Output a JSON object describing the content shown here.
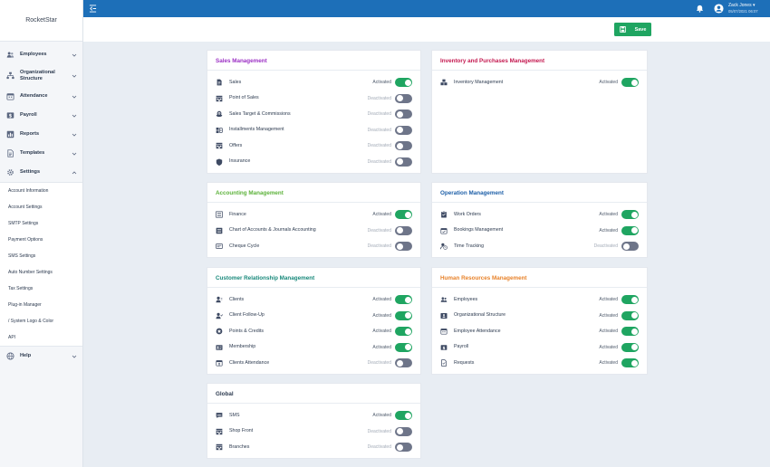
{
  "app": {
    "logo": "RocketStar"
  },
  "topbar": {
    "user_name": "Zack Jones ▾",
    "user_datetime": "05/07/2021 06:07"
  },
  "actions": {
    "save_label": "Save"
  },
  "sidebar": {
    "items": [
      {
        "label": "Employees",
        "icon": "users-icon"
      },
      {
        "label": "Organizational Structure",
        "icon": "org-chart-icon"
      },
      {
        "label": "Attendance",
        "icon": "calendar-icon"
      },
      {
        "label": "Payroll",
        "icon": "dollar-icon"
      },
      {
        "label": "Reports",
        "icon": "chart-icon"
      },
      {
        "label": "Templates",
        "icon": "document-icon"
      },
      {
        "label": "Settings",
        "icon": "gear-icon"
      }
    ],
    "settings_sub": [
      "Account Information",
      "Account Settings",
      "SMTP Settings",
      "Payment Options",
      "SMS Settings",
      "Auto Number Settings",
      "Tax Settings",
      "Plug-in Manager",
      "/ System Logo & Color",
      "API"
    ],
    "help": {
      "label": "Help",
      "icon": "globe-icon"
    }
  },
  "cards": [
    {
      "key": "sales",
      "title": "Sales Management",
      "color": "#9b2fc4",
      "rows": [
        {
          "label": "Sales",
          "status": "Activated",
          "on": true,
          "icon": "document-icon"
        },
        {
          "label": "Point of Sales",
          "status": "Deactivated",
          "on": false,
          "icon": "store-icon"
        },
        {
          "label": "Sales Target & Commissions",
          "status": "Deactivated",
          "on": false,
          "icon": "coins-icon"
        },
        {
          "label": "Installments Management",
          "status": "Deactivated",
          "on": false,
          "icon": "installments-icon"
        },
        {
          "label": "Offers",
          "status": "Deactivated",
          "on": false,
          "icon": "store-icon"
        },
        {
          "label": "Insurance",
          "status": "Deactivated",
          "on": false,
          "icon": "shield-icon"
        }
      ]
    },
    {
      "key": "inventory",
      "title": "Inventory and Purchases Management",
      "color": "#c4184f",
      "rows": [
        {
          "label": "Inventory Management",
          "status": "Activated",
          "on": true,
          "icon": "boxes-icon"
        }
      ]
    },
    {
      "key": "accounting",
      "title": "Accounting Management",
      "color": "#5cb23a",
      "rows": [
        {
          "label": "Finance",
          "status": "Activated",
          "on": true,
          "icon": "ledger-icon"
        },
        {
          "label": "Chart of Accounts & Journals Accounting",
          "status": "Deactivated",
          "on": false,
          "icon": "list-icon"
        },
        {
          "label": "Cheque Cycle",
          "status": "Deactivated",
          "on": false,
          "icon": "cheque-icon"
        }
      ]
    },
    {
      "key": "operation",
      "title": "Operation Management",
      "color": "#1d5fa8",
      "rows": [
        {
          "label": "Work Orders",
          "status": "Activated",
          "on": true,
          "icon": "clipboard-icon"
        },
        {
          "label": "Bookings Management",
          "status": "Activated",
          "on": true,
          "icon": "calendar-check-icon"
        },
        {
          "label": "Time Tracking",
          "status": "Deactivated",
          "on": false,
          "icon": "time-user-icon"
        }
      ]
    },
    {
      "key": "crm",
      "title": "Customer Relationship Management",
      "color": "#17887a",
      "rows": [
        {
          "label": "Clients",
          "status": "Activated",
          "on": true,
          "icon": "client-icon"
        },
        {
          "label": "Client Follow-Up",
          "status": "Activated",
          "on": true,
          "icon": "client-followup-icon"
        },
        {
          "label": "Points & Credits",
          "status": "Activated",
          "on": true,
          "icon": "points-icon"
        },
        {
          "label": "Membership",
          "status": "Activated",
          "on": true,
          "icon": "id-card-icon"
        },
        {
          "label": "Clients Attendance",
          "status": "Deactivated",
          "on": false,
          "icon": "calendar-user-icon"
        }
      ]
    },
    {
      "key": "hr",
      "title": "Human Resources Management",
      "color": "#e8822a",
      "rows": [
        {
          "label": "Employees",
          "status": "Activated",
          "on": true,
          "icon": "users-icon"
        },
        {
          "label": "Organizational Structure",
          "status": "Activated",
          "on": true,
          "icon": "org-chart-icon"
        },
        {
          "label": "Employee Attendance",
          "status": "Activated",
          "on": true,
          "icon": "calendar-icon"
        },
        {
          "label": "Payroll",
          "status": "Activated",
          "on": true,
          "icon": "dollar-icon"
        },
        {
          "label": "Requests",
          "status": "Activated",
          "on": true,
          "icon": "request-icon"
        }
      ]
    },
    {
      "key": "global",
      "title": "Global",
      "color": "#2c3a4f",
      "rows": [
        {
          "label": "SMS",
          "status": "Activated",
          "on": true,
          "icon": "sms-icon"
        },
        {
          "label": "Shop Front",
          "status": "Deactivated",
          "on": false,
          "icon": "store-icon"
        },
        {
          "label": "Branches",
          "status": "Deactivated",
          "on": false,
          "icon": "store-icon"
        }
      ]
    }
  ]
}
